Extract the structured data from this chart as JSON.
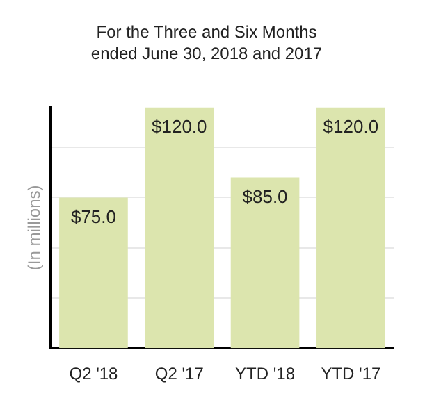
{
  "chart_data": {
    "type": "bar",
    "title": "For the Three and Six Months ended June 30, 2018 and 2017",
    "ylabel": "(In millions)",
    "categories": [
      "Q2 '18",
      "Q2 '17",
      "YTD '18",
      "YTD '17"
    ],
    "values": [
      75,
      120,
      85,
      120
    ],
    "value_labels": [
      "$75.0",
      "$120.0",
      "$85.0",
      "$120.0"
    ],
    "color": "#dce5ae",
    "ylim": [
      0,
      120
    ],
    "yticks": [
      {
        "value": 25,
        "label": null
      },
      {
        "value": 50,
        "label": null
      },
      {
        "value": 75,
        "label": null
      },
      {
        "value": 100,
        "label": null
      }
    ],
    "grid": "y",
    "tick_labels": "x"
  }
}
